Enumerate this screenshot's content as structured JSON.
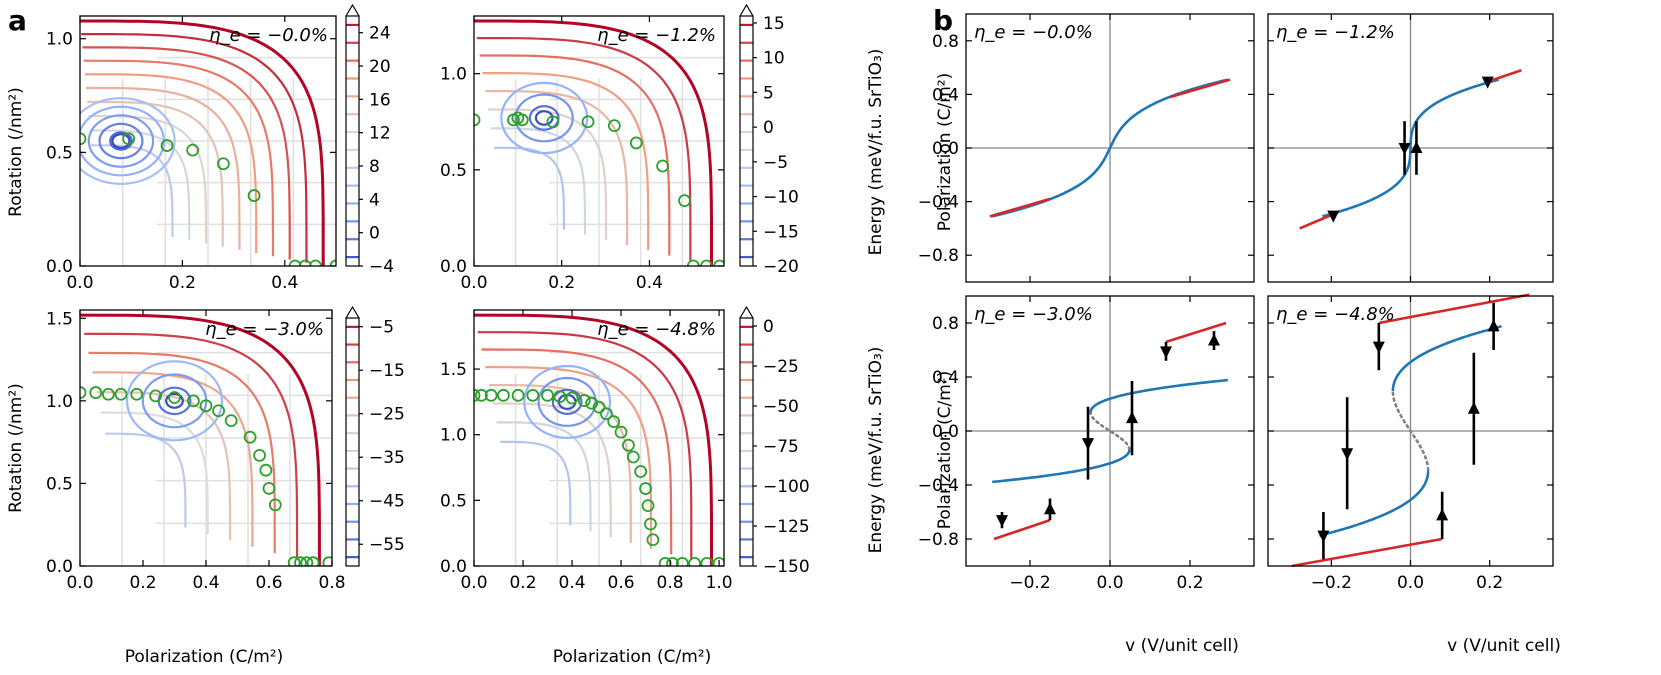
{
  "panel_labels": [
    "a",
    "b"
  ],
  "a": {
    "xlabel": "Polarization (C/m²)",
    "ylabel": "Rotation (/nm²)",
    "cbar_label_top": "Energy (meV/f.u. SrTiO₃)",
    "cbar_label_bottom": "Energy (meV/f.u. SrTiO₃)"
  },
  "b": {
    "xlabel": "v (V/unit cell)",
    "ylabel": "Polarization (C/m²)"
  },
  "colors": {
    "red": "#d62728",
    "blue": "#1f77b4",
    "green": "#2ca02c",
    "cmap_low": "#3b4cc0",
    "cmap_mid": "#dddddd",
    "cmap_high": "#b40426"
  },
  "chart_data": [
    {
      "id": "contour-1",
      "type": "contour",
      "eta_label": "η_e = −0.0%",
      "xlim": [
        0,
        0.5
      ],
      "ylim": [
        0,
        1.1
      ],
      "xticks": [
        "0.0",
        "0.2",
        "0.4"
      ],
      "xtick_values": [
        0,
        0.2,
        0.4
      ],
      "yticks": [
        "0.0",
        "0.5",
        "1.0"
      ],
      "ytick_values": [
        0,
        0.5,
        1.0
      ],
      "cbar_ticks": [
        "24",
        "20",
        "16",
        "12",
        "8",
        "4",
        "0",
        "−4"
      ],
      "cbar_range": [
        -4,
        26
      ],
      "levels": [
        26,
        24,
        22,
        20,
        18,
        16,
        14,
        12,
        10,
        8,
        6,
        4,
        2,
        0,
        -2,
        -4
      ],
      "minimum": {
        "p": 0.08,
        "r": 0.55
      },
      "path_points": [
        [
          0.0,
          0.56
        ],
        [
          0.095,
          0.56
        ],
        [
          0.17,
          0.53
        ],
        [
          0.22,
          0.51
        ],
        [
          0.28,
          0.45
        ],
        [
          0.34,
          0.31
        ],
        [
          0.42,
          0.0
        ],
        [
          0.44,
          0.0
        ],
        [
          0.46,
          0.0
        ],
        [
          0.5,
          0.0
        ]
      ]
    },
    {
      "id": "contour-2",
      "type": "contour",
      "eta_label": "η_e = −1.2%",
      "xlim": [
        0,
        0.57
      ],
      "ylim": [
        0,
        1.3
      ],
      "xticks": [
        "0.0",
        "0.2",
        "0.4"
      ],
      "xtick_values": [
        0,
        0.2,
        0.4
      ],
      "yticks": [
        "0.0",
        "0.5",
        "1.0"
      ],
      "ytick_values": [
        0,
        0.5,
        1.0
      ],
      "cbar_ticks": [
        "15",
        "10",
        "5",
        "0",
        "−5",
        "−10",
        "−15",
        "−20"
      ],
      "cbar_range": [
        -20,
        16
      ],
      "levels": [
        15,
        12,
        9,
        6,
        3,
        0,
        -3,
        -6,
        -9,
        -12,
        -15,
        -18
      ],
      "minimum": {
        "p": 0.16,
        "r": 0.77
      },
      "path_points": [
        [
          0.0,
          0.76
        ],
        [
          0.09,
          0.76
        ],
        [
          0.1,
          0.77
        ],
        [
          0.11,
          0.76
        ],
        [
          0.18,
          0.75
        ],
        [
          0.26,
          0.75
        ],
        [
          0.32,
          0.73
        ],
        [
          0.37,
          0.64
        ],
        [
          0.43,
          0.52
        ],
        [
          0.48,
          0.34
        ],
        [
          0.5,
          0.0
        ],
        [
          0.53,
          0.0
        ],
        [
          0.56,
          0.0
        ]
      ]
    },
    {
      "id": "contour-3",
      "type": "contour",
      "eta_label": "η_e = −3.0%",
      "xlim": [
        0,
        0.8
      ],
      "ylim": [
        0,
        1.55
      ],
      "xticks": [
        "0.0",
        "0.2",
        "0.4",
        "0.6",
        "0.8"
      ],
      "xtick_values": [
        0,
        0.2,
        0.4,
        0.6,
        0.8
      ],
      "yticks": [
        "0.0",
        "0.5",
        "1.0",
        "1.5"
      ],
      "ytick_values": [
        0,
        0.5,
        1.0,
        1.5
      ],
      "cbar_ticks": [
        "−5",
        "−15",
        "−25",
        "−35",
        "−45",
        "−55"
      ],
      "cbar_range": [
        -60,
        -3
      ],
      "levels": [
        -5,
        -10,
        -15,
        -20,
        -25,
        -30,
        -35,
        -40,
        -45,
        -50,
        -55
      ],
      "minimum": {
        "p": 0.3,
        "r": 1.0
      },
      "path_points": [
        [
          0.0,
          1.05
        ],
        [
          0.05,
          1.05
        ],
        [
          0.09,
          1.04
        ],
        [
          0.13,
          1.04
        ],
        [
          0.18,
          1.04
        ],
        [
          0.24,
          1.03
        ],
        [
          0.3,
          1.02
        ],
        [
          0.36,
          1.0
        ],
        [
          0.4,
          0.97
        ],
        [
          0.44,
          0.94
        ],
        [
          0.48,
          0.88
        ],
        [
          0.54,
          0.78
        ],
        [
          0.57,
          0.67
        ],
        [
          0.59,
          0.58
        ],
        [
          0.6,
          0.47
        ],
        [
          0.62,
          0.37
        ],
        [
          0.68,
          0.02
        ],
        [
          0.7,
          0.02
        ],
        [
          0.72,
          0.02
        ],
        [
          0.74,
          0.02
        ],
        [
          0.79,
          0.02
        ]
      ]
    },
    {
      "id": "contour-4",
      "type": "contour",
      "eta_label": "η_e = −4.8%",
      "xlim": [
        0,
        1.02
      ],
      "ylim": [
        0,
        1.95
      ],
      "xticks": [
        "0.0",
        "0.2",
        "0.4",
        "0.6",
        "0.8",
        "1.0"
      ],
      "xtick_values": [
        0,
        0.2,
        0.4,
        0.6,
        0.8,
        1.0
      ],
      "yticks": [
        "0.0",
        "0.5",
        "1.0",
        "1.5"
      ],
      "ytick_values": [
        0,
        0.5,
        1.0,
        1.5
      ],
      "cbar_ticks": [
        "0",
        "−25",
        "−50",
        "−75",
        "−100",
        "−125",
        "−150"
      ],
      "cbar_range": [
        -150,
        5
      ],
      "levels": [
        0,
        -12,
        -25,
        -37,
        -50,
        -62,
        -75,
        -87,
        -100,
        -112,
        -125,
        -137
      ],
      "minimum": {
        "p": 0.38,
        "r": 1.25
      },
      "path_points": [
        [
          0.0,
          1.3
        ],
        [
          0.03,
          1.3
        ],
        [
          0.07,
          1.3
        ],
        [
          0.12,
          1.3
        ],
        [
          0.18,
          1.3
        ],
        [
          0.24,
          1.3
        ],
        [
          0.3,
          1.3
        ],
        [
          0.35,
          1.29
        ],
        [
          0.4,
          1.28
        ],
        [
          0.45,
          1.26
        ],
        [
          0.48,
          1.24
        ],
        [
          0.51,
          1.21
        ],
        [
          0.54,
          1.16
        ],
        [
          0.57,
          1.1
        ],
        [
          0.6,
          1.02
        ],
        [
          0.63,
          0.92
        ],
        [
          0.65,
          0.83
        ],
        [
          0.68,
          0.72
        ],
        [
          0.7,
          0.59
        ],
        [
          0.71,
          0.46
        ],
        [
          0.72,
          0.32
        ],
        [
          0.73,
          0.2
        ],
        [
          0.78,
          0.02
        ],
        [
          0.81,
          0.02
        ],
        [
          0.85,
          0.02
        ],
        [
          0.9,
          0.02
        ],
        [
          0.95,
          0.02
        ],
        [
          1.0,
          0.02
        ]
      ]
    },
    {
      "id": "hysteresis-1",
      "type": "line",
      "eta_label": "η_e = −0.0%",
      "xlim": [
        -0.36,
        0.36
      ],
      "ylim": [
        -1.0,
        1.0
      ],
      "xticks": [
        "−0.2",
        "0.0",
        "0.2"
      ],
      "xtick_values": [
        -0.2,
        0.0,
        0.2
      ],
      "yticks": [
        "0.8",
        "0.4",
        "0.0",
        "−0.4",
        "−0.8"
      ],
      "ytick_values": [
        0.8,
        0.4,
        0.0,
        -0.4,
        -0.8
      ],
      "s_curve": {
        "A": 0.5,
        "c": 0.28,
        "vmax": 0.28
      },
      "blue_v_range": [
        -0.15,
        0.15
      ],
      "red_segments": [
        [
          [
            -0.3,
            -0.51
          ],
          [
            -0.15,
            -0.38
          ]
        ],
        [
          [
            0.15,
            0.38
          ],
          [
            0.3,
            0.51
          ]
        ]
      ],
      "jumps": []
    },
    {
      "id": "hysteresis-2",
      "type": "line",
      "eta_label": "η_e = −1.2%",
      "xlim": [
        -0.36,
        0.36
      ],
      "ylim": [
        -1.0,
        1.0
      ],
      "xticks": [
        "−0.2",
        "0.0",
        "0.2"
      ],
      "xtick_values": [
        -0.2,
        0.0,
        0.2
      ],
      "yticks": [
        "0.8",
        "0.4",
        "0.0",
        "−0.4",
        "−0.8"
      ],
      "ytick_values": [
        0.8,
        0.4,
        0.0,
        -0.4,
        -0.8
      ],
      "s_curve": {
        "A": 0.5,
        "c": 0.02,
        "vmax": 0.21
      },
      "blue_v_range": [
        -0.21,
        0.21
      ],
      "red_segments": [
        [
          [
            -0.28,
            -0.6
          ],
          [
            -0.2,
            -0.5
          ]
        ],
        [
          [
            0.2,
            0.5
          ],
          [
            0.28,
            0.58
          ]
        ]
      ],
      "jumps": [
        [
          -0.015,
          0.2,
          -0.015,
          -0.2
        ],
        [
          0.015,
          -0.2,
          0.015,
          0.2
        ],
        [
          -0.2,
          -0.5,
          -0.19,
          -0.51
        ],
        [
          0.2,
          0.5,
          0.19,
          0.49
        ]
      ]
    },
    {
      "id": "hysteresis-3",
      "type": "line",
      "eta_label": "η_e = −3.0%",
      "xlim": [
        -0.36,
        0.36
      ],
      "ylim": [
        -1.0,
        1.0
      ],
      "xticks": [
        "−0.2",
        "0.0",
        "0.2"
      ],
      "xtick_values": [
        -0.2,
        0.0,
        0.2
      ],
      "yticks": [
        "0.8",
        "0.4",
        "0.0",
        "−0.4",
        "−0.8"
      ],
      "ytick_values": [
        0.8,
        0.4,
        0.0,
        -0.4,
        -0.8
      ],
      "s_curve": {
        "A": 0.37,
        "c": -0.72,
        "vmax": 0.27
      },
      "blue_v_range": [
        -0.27,
        0.27
      ],
      "red_segments": [
        [
          [
            -0.29,
            -0.8
          ],
          [
            -0.15,
            -0.66
          ]
        ],
        [
          [
            0.14,
            0.66
          ],
          [
            0.29,
            0.8
          ]
        ]
      ],
      "jumps": [
        [
          -0.055,
          0.18,
          -0.055,
          -0.36
        ],
        [
          0.055,
          -0.18,
          0.055,
          0.37
        ],
        [
          -0.27,
          -0.6,
          -0.27,
          -0.72
        ],
        [
          -0.15,
          -0.66,
          -0.15,
          -0.5
        ],
        [
          0.14,
          0.66,
          0.14,
          0.52
        ],
        [
          0.26,
          0.6,
          0.26,
          0.74
        ]
      ]
    },
    {
      "id": "hysteresis-4",
      "type": "line",
      "eta_label": "η_e = −4.8%",
      "xlim": [
        -0.36,
        0.36
      ],
      "ylim": [
        -1.0,
        1.0
      ],
      "xticks": [
        "−0.2",
        "0.0",
        "0.2"
      ],
      "xtick_values": [
        -0.2,
        0.0,
        0.2
      ],
      "yticks": [
        "0.8",
        "0.4",
        "0.0",
        "−0.4",
        "−0.8"
      ],
      "ytick_values": [
        0.8,
        0.4,
        0.0,
        -0.4,
        -0.8
      ],
      "s_curve": {
        "A": 0.76,
        "c": -0.82,
        "vmax": 0.21
      },
      "blue_v_range": [
        -0.21,
        0.21
      ],
      "red_segments": [
        [
          [
            -0.3,
            -1.0
          ],
          [
            0.08,
            -0.8
          ]
        ],
        [
          [
            -0.08,
            0.8
          ],
          [
            0.3,
            1.01
          ]
        ]
      ],
      "jumps": [
        [
          -0.16,
          0.25,
          -0.16,
          -0.58
        ],
        [
          0.16,
          -0.25,
          0.16,
          0.58
        ],
        [
          -0.08,
          0.8,
          -0.08,
          0.45
        ],
        [
          0.08,
          -0.8,
          0.08,
          -0.45
        ],
        [
          -0.22,
          -0.6,
          -0.22,
          -0.95
        ],
        [
          0.21,
          0.6,
          0.21,
          0.95
        ]
      ]
    }
  ]
}
